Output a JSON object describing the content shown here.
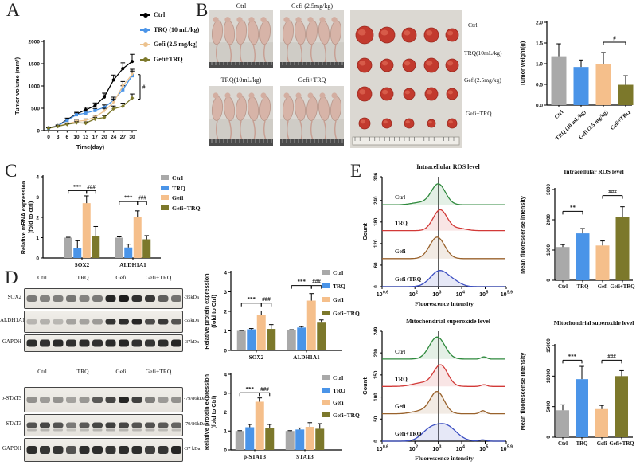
{
  "colors": {
    "bar_gray": "#a9a9a9",
    "bar_blue": "#4a94e8",
    "bar_orange": "#f5bf8b",
    "bar_olive": "#7c782b",
    "line_black": "#000000",
    "line_blue": "#4a94e8",
    "line_tan": "#ecc28e",
    "line_olive": "#7c782b",
    "hist_green": "#2f8a3d",
    "hist_red": "#d23937",
    "hist_brown": "#99622c",
    "hist_blue": "#3b4ec2"
  },
  "panels": {
    "A": {
      "label": "A",
      "legend": [
        {
          "label": "Ctrl",
          "color": "#000000"
        },
        {
          "label": "TRQ (10 mL/kg)",
          "color": "#4a94e8"
        },
        {
          "label": "Gefi (2.5 mg/kg)",
          "color": "#ecc28e"
        },
        {
          "label": "Gefi+TRQ",
          "color": "#7c782b"
        }
      ]
    },
    "B": {
      "label": "B",
      "photos": [
        "Ctrl",
        "Gefi (2.5mg/kg)",
        "TRQ(10mL/kg)",
        "Gefi+TRQ"
      ],
      "tumor_labels": [
        "Ctrl",
        "TRQ(10mL/kg)",
        "Gefi(2.5mg/kg)",
        "Gefi+TRQ"
      ]
    },
    "C": {
      "label": "C",
      "legend": [
        {
          "label": "Ctrl",
          "color": "#a9a9a9"
        },
        {
          "label": "TRQ",
          "color": "#4a94e8"
        },
        {
          "label": "Gefi",
          "color": "#f5bf8b"
        },
        {
          "label": "Gefi+TRQ",
          "color": "#7c782b"
        }
      ]
    },
    "D": {
      "label": "D",
      "lanes": [
        "Ctrl",
        "TRQ",
        "Gefi",
        "Gefi+TRQ"
      ],
      "blot1": {
        "rows": [
          {
            "name": "SOX2",
            "kda": "-35kDa",
            "bands": [
              0.5,
              0.45,
              0.48,
              0.52,
              0.45,
              0.5,
              0.95,
              1,
              0.9,
              0.85,
              0.65,
              0.55
            ]
          },
          {
            "name": "ALDH1A1",
            "kda": "-55kDa",
            "bands": [
              0.18,
              0.2,
              0.17,
              0.28,
              0.28,
              0.33,
              0.88,
              0.92,
              0.95,
              0.75,
              0.85,
              0.7
            ]
          },
          {
            "name": "GAPDH",
            "kda": "-37kDa",
            "bands": [
              0.92,
              0.9,
              0.93,
              0.9,
              0.92,
              0.9,
              0.93,
              0.95,
              0.9,
              0.88,
              0.92,
              0.95
            ]
          }
        ]
      },
      "blot2": {
        "rows": [
          {
            "name": "p-STAT3",
            "kda": "-79/86kDa",
            "bands": [
              0.38,
              0.32,
              0.36,
              0.28,
              0.34,
              0.68,
              0.78,
              0.97,
              0.82,
              0.48,
              0.33,
              0.38
            ]
          },
          {
            "name": "STAT3",
            "kda": "-79/86kDa",
            "bands": [
              0.72,
              0.78,
              0.72,
              0.5,
              0.68,
              0.78,
              0.82,
              0.78,
              0.72,
              0.72,
              0.68,
              0.62
            ]
          },
          {
            "name": "GAPDH",
            "kda": "-37 kDa",
            "bands": [
              0.92,
              0.88,
              0.88,
              0.72,
              0.92,
              0.92,
              0.88,
              0.92,
              0.92,
              0.82,
              0.88,
              0.95
            ]
          }
        ]
      },
      "legend": [
        {
          "label": "Ctrl",
          "color": "#a9a9a9"
        },
        {
          "label": "TRQ",
          "color": "#4a94e8"
        },
        {
          "label": "Gefi",
          "color": "#f5bf8b"
        },
        {
          "label": "Gefi+TRQ",
          "color": "#7c782b"
        }
      ]
    },
    "E": {
      "label": "E"
    }
  },
  "chart_data": [
    {
      "id": "A_line",
      "type": "line",
      "title": "",
      "xlabel": "Time(day)",
      "ylabel": "Tumor volume (mm³)",
      "x": [
        0,
        3,
        6,
        10,
        13,
        17,
        20,
        24,
        27,
        30
      ],
      "ylim": [
        0,
        2000
      ],
      "yticks": [
        0,
        500,
        1000,
        1500,
        2000
      ],
      "series": [
        {
          "name": "Ctrl",
          "color": "#000000",
          "marker": "circle",
          "values": [
            60,
            110,
            245,
            370,
            465,
            555,
            755,
            1135,
            1390,
            1550
          ],
          "err": [
            15,
            20,
            35,
            40,
            55,
            65,
            85,
            110,
            130,
            160
          ]
        },
        {
          "name": "TRQ (10 mL/kg)",
          "color": "#4a94e8",
          "marker": "square",
          "values": [
            55,
            105,
            230,
            355,
            390,
            450,
            520,
            680,
            915,
            1230
          ],
          "err": [
            12,
            18,
            28,
            35,
            40,
            45,
            55,
            70,
            90,
            105
          ]
        },
        {
          "name": "Gefi (2.5 mg/kg)",
          "color": "#ecc28e",
          "marker": "tri",
          "values": [
            55,
            100,
            150,
            205,
            230,
            300,
            440,
            630,
            1000,
            1260
          ],
          "err": [
            12,
            16,
            22,
            28,
            32,
            45,
            60,
            80,
            100,
            115
          ]
        },
        {
          "name": "Gefi+TRQ",
          "color": "#7c782b",
          "marker": "diamond",
          "values": [
            52,
            95,
            140,
            175,
            168,
            260,
            292,
            490,
            545,
            730
          ],
          "err": [
            10,
            15,
            20,
            25,
            28,
            38,
            45,
            60,
            70,
            90
          ]
        }
      ],
      "bracket": {
        "y1": 1255,
        "y2": 705,
        "text": "#"
      }
    },
    {
      "id": "B_bar",
      "type": "bar",
      "title": "",
      "ylabel": [
        "Tumor weight(g)"
      ],
      "categories": [
        "Ctrl",
        "TRQ (10 mL/kg)",
        "Gefi (2.5 mg/kg)",
        "Gefi+TRQ"
      ],
      "values": [
        1.18,
        0.92,
        1.0,
        0.49
      ],
      "err": [
        0.3,
        0.17,
        0.27,
        0.22
      ],
      "colors": [
        "#a9a9a9",
        "#4a94e8",
        "#f5bf8b",
        "#7c782b"
      ],
      "ylim": [
        0,
        2.0
      ],
      "yticks": [
        "0.0",
        "0.5",
        "1.0",
        "1.5",
        "2.0"
      ],
      "annotations": [
        {
          "text": "#",
          "from": 2,
          "to": 3,
          "y": 1.52
        }
      ]
    },
    {
      "id": "C_bar",
      "type": "grouped_bar",
      "ylabel": [
        "Relative mRNA expression",
        "(fold to ctrl)"
      ],
      "categories": [
        "SOX2",
        "ALDH1A1"
      ],
      "series": [
        {
          "name": "Ctrl",
          "color": "#a9a9a9",
          "values": [
            1.0,
            1.0
          ],
          "err": [
            0.02,
            0.04
          ]
        },
        {
          "name": "TRQ",
          "color": "#4a94e8",
          "values": [
            0.47,
            0.52
          ],
          "err": [
            0.38,
            0.16
          ]
        },
        {
          "name": "Gefi",
          "color": "#f5bf8b",
          "values": [
            2.7,
            2.02
          ],
          "err": [
            0.36,
            0.3
          ]
        },
        {
          "name": "Gefi+TRQ",
          "color": "#7c782b",
          "values": [
            1.07,
            0.92
          ],
          "err": [
            0.48,
            0.18
          ]
        }
      ],
      "ylim": [
        0,
        4
      ],
      "yticks": [
        0,
        1,
        2,
        3,
        4
      ],
      "annotations": [
        {
          "text": "***",
          "group": 0,
          "from": 0,
          "to": 2,
          "y": 3.32
        },
        {
          "text": "###",
          "group": 0,
          "from": 2,
          "to": 3,
          "y": 3.32
        },
        {
          "text": "***",
          "group": 1,
          "from": 0,
          "to": 2,
          "y": 2.78
        },
        {
          "text": "###",
          "group": 1,
          "from": 2,
          "to": 3,
          "y": 2.78
        }
      ]
    },
    {
      "id": "D1_bar",
      "type": "grouped_bar",
      "ylabel": [
        "Relative protein expression",
        "(fold to Ctrl)"
      ],
      "categories": [
        "SOX2",
        "ALDH1A1"
      ],
      "series": [
        {
          "name": "Ctrl",
          "color": "#a9a9a9",
          "values": [
            1.0,
            1.03
          ],
          "err": [
            0.02,
            0.03
          ]
        },
        {
          "name": "TRQ",
          "color": "#4a94e8",
          "values": [
            1.08,
            1.17
          ],
          "err": [
            0.04,
            0.05
          ]
        },
        {
          "name": "Gefi",
          "color": "#f5bf8b",
          "values": [
            1.82,
            2.55
          ],
          "err": [
            0.2,
            0.36
          ]
        },
        {
          "name": "Gefi+TRQ",
          "color": "#7c782b",
          "values": [
            1.1,
            1.42
          ],
          "err": [
            0.22,
            0.14
          ]
        }
      ],
      "ylim": [
        0,
        4
      ],
      "yticks": [
        0,
        1,
        2,
        3,
        4
      ],
      "annotations": [
        {
          "text": "***",
          "group": 0,
          "from": 0,
          "to": 2,
          "y": 2.42
        },
        {
          "text": "###",
          "group": 0,
          "from": 2,
          "to": 3,
          "y": 2.42
        },
        {
          "text": "***",
          "group": 1,
          "from": 0,
          "to": 2,
          "y": 3.32
        },
        {
          "text": "###",
          "group": 1,
          "from": 2,
          "to": 3,
          "y": 3.32
        }
      ]
    },
    {
      "id": "D2_bar",
      "type": "grouped_bar",
      "ylabel": [
        "Relative protein expression",
        "(fold to Ctrl)"
      ],
      "categories": [
        "p-STAT3",
        "STAT3"
      ],
      "series": [
        {
          "name": "Ctrl",
          "color": "#a9a9a9",
          "values": [
            1.0,
            1.0
          ],
          "err": [
            0.02,
            0.02
          ]
        },
        {
          "name": "TRQ",
          "color": "#4a94e8",
          "values": [
            1.2,
            1.08
          ],
          "err": [
            0.15,
            0.08
          ]
        },
        {
          "name": "Gefi",
          "color": "#f5bf8b",
          "values": [
            2.55,
            1.22
          ],
          "err": [
            0.2,
            0.22
          ]
        },
        {
          "name": "Gefi+TRQ",
          "color": "#7c782b",
          "values": [
            1.15,
            1.12
          ],
          "err": [
            0.2,
            0.27
          ]
        }
      ],
      "ylim": [
        0,
        4
      ],
      "yticks": [
        0,
        1,
        2,
        3,
        4
      ],
      "annotations": [
        {
          "text": "***",
          "group": 0,
          "from": 0,
          "to": 2,
          "y": 3.02
        },
        {
          "text": "###",
          "group": 0,
          "from": 2,
          "to": 3,
          "y": 3.02
        }
      ]
    },
    {
      "id": "E1_hist",
      "type": "histogram_stack",
      "title": "Intracellular ROS level",
      "xlabel": "Fluorescence intensity",
      "ylabel": "Count",
      "ylim": [
        0,
        306
      ],
      "yticks": [
        0,
        60,
        120,
        180,
        240,
        306
      ],
      "xlogs": [
        0.6,
        2,
        3,
        4,
        5,
        5.9
      ],
      "xexps": [
        "0.6",
        "2",
        "3",
        "4",
        "5",
        "5.9"
      ],
      "logMin": 0.6,
      "logMax": 5.9,
      "refLog": 3,
      "rows": [
        {
          "label": "Ctrl",
          "color": "#2f8a3d",
          "base": 228,
          "peaks": [
            {
              "c": 3.0,
              "h": 58,
              "w": 0.3
            },
            {
              "c": 2.2,
              "h": 6,
              "w": 0.35
            }
          ]
        },
        {
          "label": "TRQ",
          "color": "#d23937",
          "base": 156,
          "peaks": [
            {
              "c": 3.08,
              "h": 58,
              "w": 0.3
            },
            {
              "c": 3.9,
              "h": 6,
              "w": 0.3
            }
          ]
        },
        {
          "label": "Gefi",
          "color": "#99622c",
          "base": 78,
          "peaks": [
            {
              "c": 2.95,
              "h": 60,
              "w": 0.32
            }
          ]
        },
        {
          "label": "Gefi+TRQ",
          "color": "#3b4ec2",
          "base": 0,
          "peaks": [
            {
              "c": 3.05,
              "h": 44,
              "w": 0.38
            },
            {
              "c": 3.7,
              "h": 10,
              "w": 0.3
            }
          ]
        }
      ]
    },
    {
      "id": "E1_bar",
      "type": "bar",
      "title": "Intracellular ROS level",
      "ylabel": [
        "Mean fluorescense intensity"
      ],
      "categories": [
        "Ctrl",
        "TRQ",
        "Gefi",
        "Gefi+TRQ"
      ],
      "values": [
        1100,
        1550,
        1150,
        2100
      ],
      "err": [
        80,
        160,
        150,
        330
      ],
      "colors": [
        "#a9a9a9",
        "#4a94e8",
        "#f5bf8b",
        "#7c782b"
      ],
      "ylim": [
        0,
        3000
      ],
      "yticks": [
        0,
        1000,
        2000,
        3000
      ],
      "annotations": [
        {
          "text": "**",
          "from": 0,
          "to": 1,
          "y": 2280
        },
        {
          "text": "###",
          "from": 2,
          "to": 3,
          "y": 2800
        }
      ]
    },
    {
      "id": "E2_hist",
      "type": "histogram_stack",
      "title": "Mitochondrial superoxide level",
      "xlabel": "Fluorescence intensity",
      "ylabel": "Count",
      "ylim": [
        0,
        249
      ],
      "yticks": [
        0,
        50,
        100,
        150,
        200,
        249
      ],
      "xlogs": [
        0.6,
        2,
        3,
        4,
        5,
        5.9
      ],
      "xexps": [
        "0.6",
        "2",
        "3",
        "4",
        "5",
        "5.9"
      ],
      "logMin": 0.6,
      "logMax": 5.9,
      "refLog": 3,
      "rows": [
        {
          "label": "Ctrl",
          "color": "#2f8a3d",
          "base": 186,
          "peaks": [
            {
              "c": 2.95,
              "h": 50,
              "w": 0.33
            },
            {
              "c": 4.95,
              "h": 5,
              "w": 0.12
            }
          ]
        },
        {
          "label": "TRQ",
          "color": "#d23937",
          "base": 124,
          "peaks": [
            {
              "c": 3.1,
              "h": 48,
              "w": 0.3
            },
            {
              "c": 2.3,
              "h": 8,
              "w": 0.4
            },
            {
              "c": 4.95,
              "h": 4,
              "w": 0.12
            }
          ]
        },
        {
          "label": "Gefi",
          "color": "#99622c",
          "base": 62,
          "peaks": [
            {
              "c": 2.95,
              "h": 50,
              "w": 0.3
            },
            {
              "c": 2.2,
              "h": 6,
              "w": 0.35
            },
            {
              "c": 4.9,
              "h": 7,
              "w": 0.12
            }
          ]
        },
        {
          "label": "Gefi+TRQ",
          "color": "#3b4ec2",
          "base": 0,
          "peaks": [
            {
              "c": 3.3,
              "h": 36,
              "w": 0.45
            },
            {
              "c": 2.6,
              "h": 20,
              "w": 0.35
            },
            {
              "c": 4.9,
              "h": 3,
              "w": 0.15
            }
          ]
        }
      ]
    },
    {
      "id": "E2_bar",
      "type": "bar",
      "title": "Mitochondrial superoxide level",
      "ylabel": [
        "Mean fluorescense Intensity"
      ],
      "categories": [
        "Ctrl",
        "TRQ",
        "Gefi",
        "Gefi+TRQ"
      ],
      "values": [
        4400,
        9500,
        4600,
        10000
      ],
      "err": [
        900,
        2100,
        600,
        900
      ],
      "colors": [
        "#a9a9a9",
        "#4a94e8",
        "#f5bf8b",
        "#7c782b"
      ],
      "ylim": [
        0,
        15000
      ],
      "yticks": [
        0,
        5000,
        10000,
        15000
      ],
      "annotations": [
        {
          "text": "***",
          "from": 0,
          "to": 1,
          "y": 12600
        },
        {
          "text": "###",
          "from": 2,
          "to": 3,
          "y": 12600
        }
      ]
    }
  ]
}
